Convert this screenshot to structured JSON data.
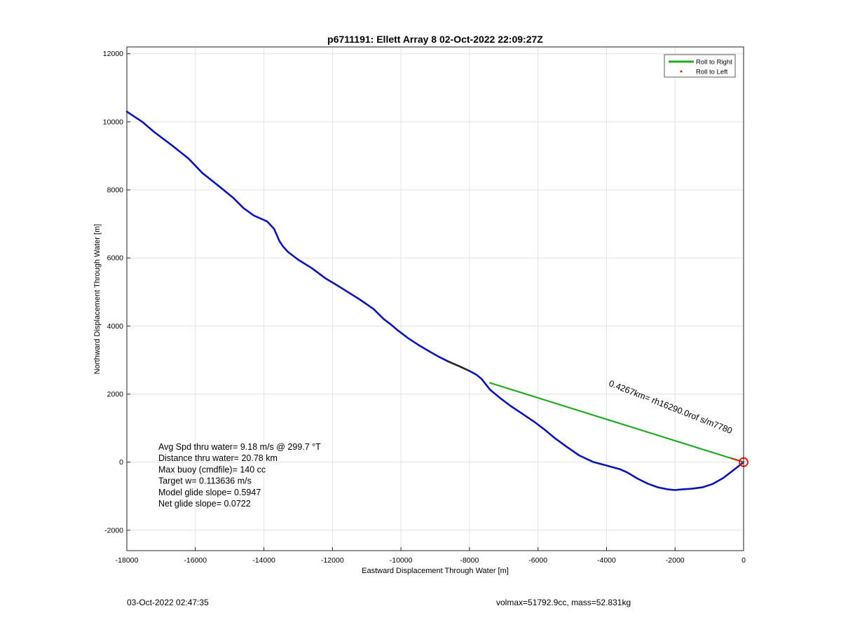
{
  "chart_data": {
    "type": "line",
    "title": "p6711191: Ellett Array 8 02-Oct-2022 22:09:27Z",
    "xlabel": "Eastward Displacement Through Water [m]",
    "ylabel": "Northward Displacement Through Water [m]",
    "xlim": [
      -18000,
      0
    ],
    "ylim": [
      -2600,
      12200
    ],
    "xticks": [
      -18000,
      -16000,
      -14000,
      -12000,
      -10000,
      -8000,
      -6000,
      -4000,
      -2000,
      0
    ],
    "yticks": [
      -2000,
      0,
      2000,
      4000,
      6000,
      8000,
      10000,
      12000
    ],
    "grid": true,
    "legend": {
      "placement": "top-right",
      "entries": [
        {
          "label": "Roll to Right",
          "color": "#22aa22",
          "marker": "line"
        },
        {
          "label": "Roll to Left",
          "color": "#ff0000",
          "marker": "dot"
        }
      ]
    },
    "series": [
      {
        "color": "#0a14b4",
        "x": [
          -18000,
          -17550,
          -17200,
          -16700,
          -16200,
          -15800,
          -15300,
          -14900,
          -14600,
          -14300,
          -13900,
          -13700,
          -13550,
          -13450,
          -13300,
          -13000,
          -12600,
          -12200,
          -11900,
          -11600,
          -11200,
          -10800,
          -10500,
          -10300,
          -10100,
          -9800,
          -9500,
          -9200,
          -8900,
          -8600
        ],
        "y": [
          10300,
          10000,
          9700,
          9320,
          8920,
          8500,
          8100,
          7770,
          7470,
          7250,
          7070,
          6850,
          6500,
          6350,
          6180,
          5950,
          5700,
          5400,
          5220,
          5030,
          4780,
          4500,
          4200,
          4050,
          3880,
          3650,
          3450,
          3270,
          3100,
          2950
        ]
      },
      {
        "color": "#222222",
        "x": [
          -8600,
          -8300,
          -8000
        ],
        "y": [
          2950,
          2820,
          2680
        ]
      },
      {
        "color": "#0a14b4",
        "x": [
          -8000,
          -7800,
          -7650,
          -7400,
          -7100,
          -6800,
          -6500,
          -6100,
          -5800,
          -5500,
          -5200,
          -4800,
          -4400,
          -4000,
          -3600,
          -3400,
          -3100,
          -2800,
          -2500,
          -2200,
          -2000,
          -1800,
          -1500,
          -1200,
          -900,
          -600,
          -300,
          -100,
          0
        ],
        "y": [
          2680,
          2570,
          2450,
          2130,
          1880,
          1650,
          1450,
          1180,
          950,
          700,
          480,
          200,
          10,
          -100,
          -210,
          -300,
          -480,
          -630,
          -740,
          -800,
          -820,
          -800,
          -780,
          -740,
          -640,
          -470,
          -240,
          -80,
          0
        ]
      },
      {
        "color": "#22aa22",
        "x": [
          -7400,
          0
        ],
        "y": [
          2330,
          0
        ]
      }
    ],
    "annotations": [
      {
        "text": "0.4267km= rh16290.0rof s/m7780",
        "x": -3950,
        "y": 2250,
        "rotation": 201.5,
        "color": "#000000"
      }
    ],
    "stats": [
      "Avg Spd thru water=  9.18 m/s @ 299.7 °T",
      "Distance thru water= 20.78 km",
      "Max buoy (cmdfile)= 140 cc",
      "Target w= 0.113636 m/s",
      "Model glide slope= 0.5947",
      "Net glide slope= 0.0722"
    ]
  },
  "footer": {
    "timestamp": "03-Oct-2022 02:47:35",
    "summary": "volmax=51792.9cc, mass=52.831kg"
  }
}
